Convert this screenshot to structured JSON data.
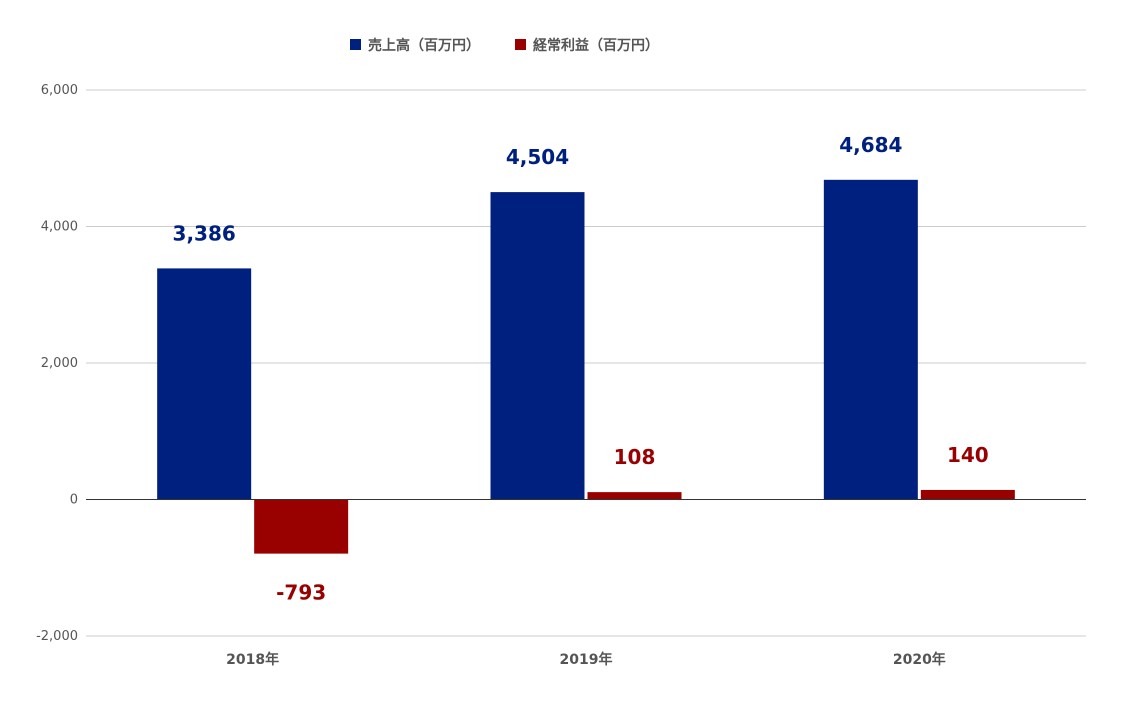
{
  "chart_data": {
    "type": "bar",
    "categories": [
      "2018年",
      "2019年",
      "2020年"
    ],
    "series": [
      {
        "name": "売上高（百万円）",
        "color": "#00207f",
        "values": [
          3386,
          4504,
          4684
        ],
        "labels": [
          "3,386",
          "4,504",
          "4,684"
        ]
      },
      {
        "name": "経常利益（百万円）",
        "color": "#990000",
        "values": [
          -793,
          108,
          140
        ],
        "labels": [
          "-793",
          "108",
          "140"
        ]
      }
    ],
    "ylim": [
      -2000,
      6000
    ],
    "yticks": [
      -2000,
      0,
      2000,
      4000,
      6000
    ],
    "ytick_labels": [
      "-2,000",
      "0",
      "2,000",
      "4,000",
      "6,000"
    ],
    "grid": true,
    "legend_position": "top"
  }
}
